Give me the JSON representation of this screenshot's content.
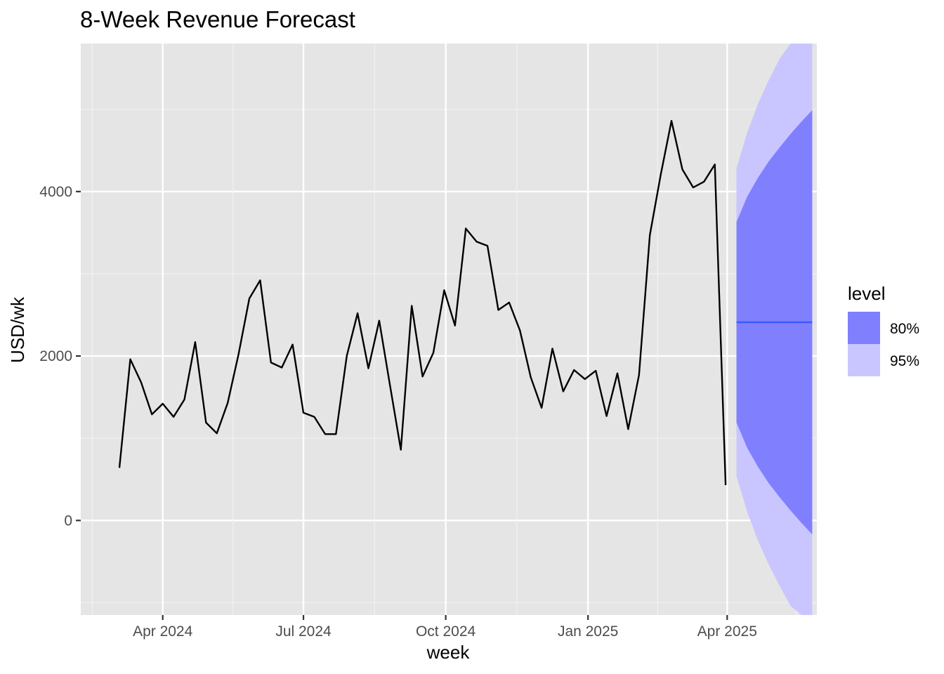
{
  "chart_data": {
    "type": "line",
    "title": "8-Week Revenue Forecast",
    "xlabel": "week",
    "ylabel": "USD/wk",
    "ylim": [
      -1150,
      5800
    ],
    "xlim": [
      "2024-02-08",
      "2025-05-29"
    ],
    "y_ticks": [
      0,
      2000,
      4000
    ],
    "y_tick_labels": [
      "0",
      "2000",
      "4000"
    ],
    "x_ticks": [
      "2024-04-01",
      "2024-07-01",
      "2024-10-01",
      "2025-01-01",
      "2025-04-01"
    ],
    "x_tick_labels": [
      "Apr 2024",
      "Jul 2024",
      "Oct 2024",
      "Jan 2025",
      "Apr 2025"
    ],
    "grid": true,
    "legend": {
      "title": "level",
      "position": "right",
      "items": [
        {
          "label": "80%",
          "color": "#8080ff"
        },
        {
          "label": "95%",
          "color": "#c9c6ff"
        }
      ]
    },
    "colors": {
      "panel": "#e5e5e5",
      "grid_major": "#ffffff",
      "grid_minor": "#f2f2f2",
      "history_line": "#000000",
      "forecast_line": "#3b5bff",
      "band_80": "#8080ff",
      "band_95": "#c9c6ff"
    },
    "history": {
      "x": [
        "2024-03-04",
        "2024-03-11",
        "2024-03-18",
        "2024-03-25",
        "2024-04-01",
        "2024-04-08",
        "2024-04-15",
        "2024-04-22",
        "2024-04-29",
        "2024-05-06",
        "2024-05-13",
        "2024-05-20",
        "2024-05-27",
        "2024-06-03",
        "2024-06-10",
        "2024-06-17",
        "2024-06-24",
        "2024-07-01",
        "2024-07-08",
        "2024-07-15",
        "2024-07-22",
        "2024-07-29",
        "2024-08-05",
        "2024-08-12",
        "2024-08-19",
        "2024-08-26",
        "2024-09-02",
        "2024-09-09",
        "2024-09-16",
        "2024-09-23",
        "2024-09-30",
        "2024-10-07",
        "2024-10-14",
        "2024-10-21",
        "2024-10-28",
        "2024-11-04",
        "2024-11-11",
        "2024-11-18",
        "2024-11-25",
        "2024-12-02",
        "2024-12-09",
        "2024-12-16",
        "2024-12-23",
        "2024-12-30",
        "2025-01-06",
        "2025-01-13",
        "2025-01-20",
        "2025-01-27",
        "2025-02-03",
        "2025-02-10",
        "2025-02-17",
        "2025-02-24",
        "2025-03-03",
        "2025-03-10",
        "2025-03-17",
        "2025-03-24",
        "2025-03-31"
      ],
      "y": [
        640,
        1960,
        1680,
        1290,
        1420,
        1260,
        1470,
        2170,
        1190,
        1060,
        1430,
        2020,
        2700,
        2920,
        1920,
        1860,
        2140,
        1310,
        1260,
        1050,
        1050,
        2000,
        2520,
        1850,
        2430,
        1640,
        860,
        2610,
        1750,
        2040,
        2800,
        2370,
        3550,
        3390,
        3340,
        2560,
        2650,
        2310,
        1740,
        1370,
        2090,
        1570,
        1830,
        1720,
        1820,
        1270,
        1790,
        1110,
        1770,
        3470,
        4200,
        4860,
        4270,
        4050,
        4120,
        4330,
        430
      ]
    },
    "forecast": {
      "x": [
        "2025-04-07",
        "2025-04-14",
        "2025-04-21",
        "2025-04-28",
        "2025-05-05",
        "2025-05-12",
        "2025-05-19",
        "2025-05-26"
      ],
      "mean": [
        2410,
        2410,
        2410,
        2410,
        2410,
        2410,
        2410,
        2410
      ],
      "lo80": [
        1190,
        880,
        650,
        450,
        280,
        120,
        -30,
        -170
      ],
      "hi80": [
        3630,
        3940,
        4170,
        4370,
        4540,
        4700,
        4850,
        4990
      ],
      "lo95": [
        540,
        100,
        -250,
        -540,
        -800,
        -1040,
        -1250,
        -1460
      ],
      "hi95": [
        4280,
        4720,
        5070,
        5360,
        5620,
        5860,
        6070,
        6280
      ]
    }
  }
}
